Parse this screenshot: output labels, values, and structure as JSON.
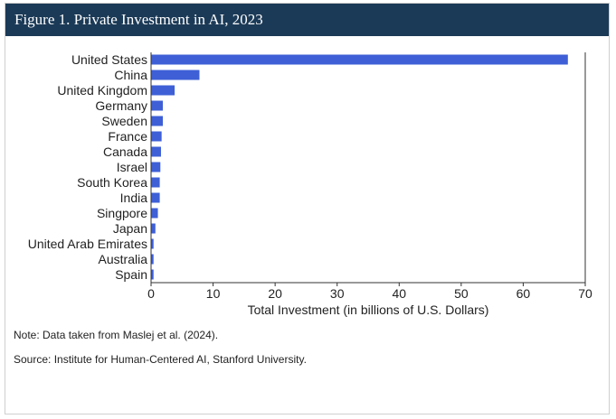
{
  "header": {
    "title": "Figure 1. Private Investment in AI, 2023"
  },
  "notes": {
    "note": "Note: Data taken from Maslej et al. (2024).",
    "source": "Source: Institute for Human-Centered AI, Stanford University."
  },
  "colors": {
    "bar": "#3e5fd6",
    "header_bg": "#1b3a57"
  },
  "chart_data": {
    "type": "bar",
    "orientation": "horizontal",
    "title": "",
    "xlabel": "Total Investment (in billions of U.S. Dollars)",
    "ylabel": "",
    "xlim": [
      0,
      70
    ],
    "xticks": [
      0,
      10,
      20,
      30,
      40,
      50,
      60,
      70
    ],
    "grid": false,
    "categories": [
      "United States",
      "China",
      "United Kingdom",
      "Germany",
      "Sweden",
      "France",
      "Canada",
      "Israel",
      "South Korea",
      "India",
      "Singpore",
      "Japan",
      "United Arab Emirates",
      "Australia",
      "Spain"
    ],
    "values": [
      67.2,
      7.8,
      3.8,
      1.9,
      1.9,
      1.7,
      1.6,
      1.5,
      1.4,
      1.4,
      1.1,
      0.7,
      0.4,
      0.4,
      0.4
    ]
  }
}
